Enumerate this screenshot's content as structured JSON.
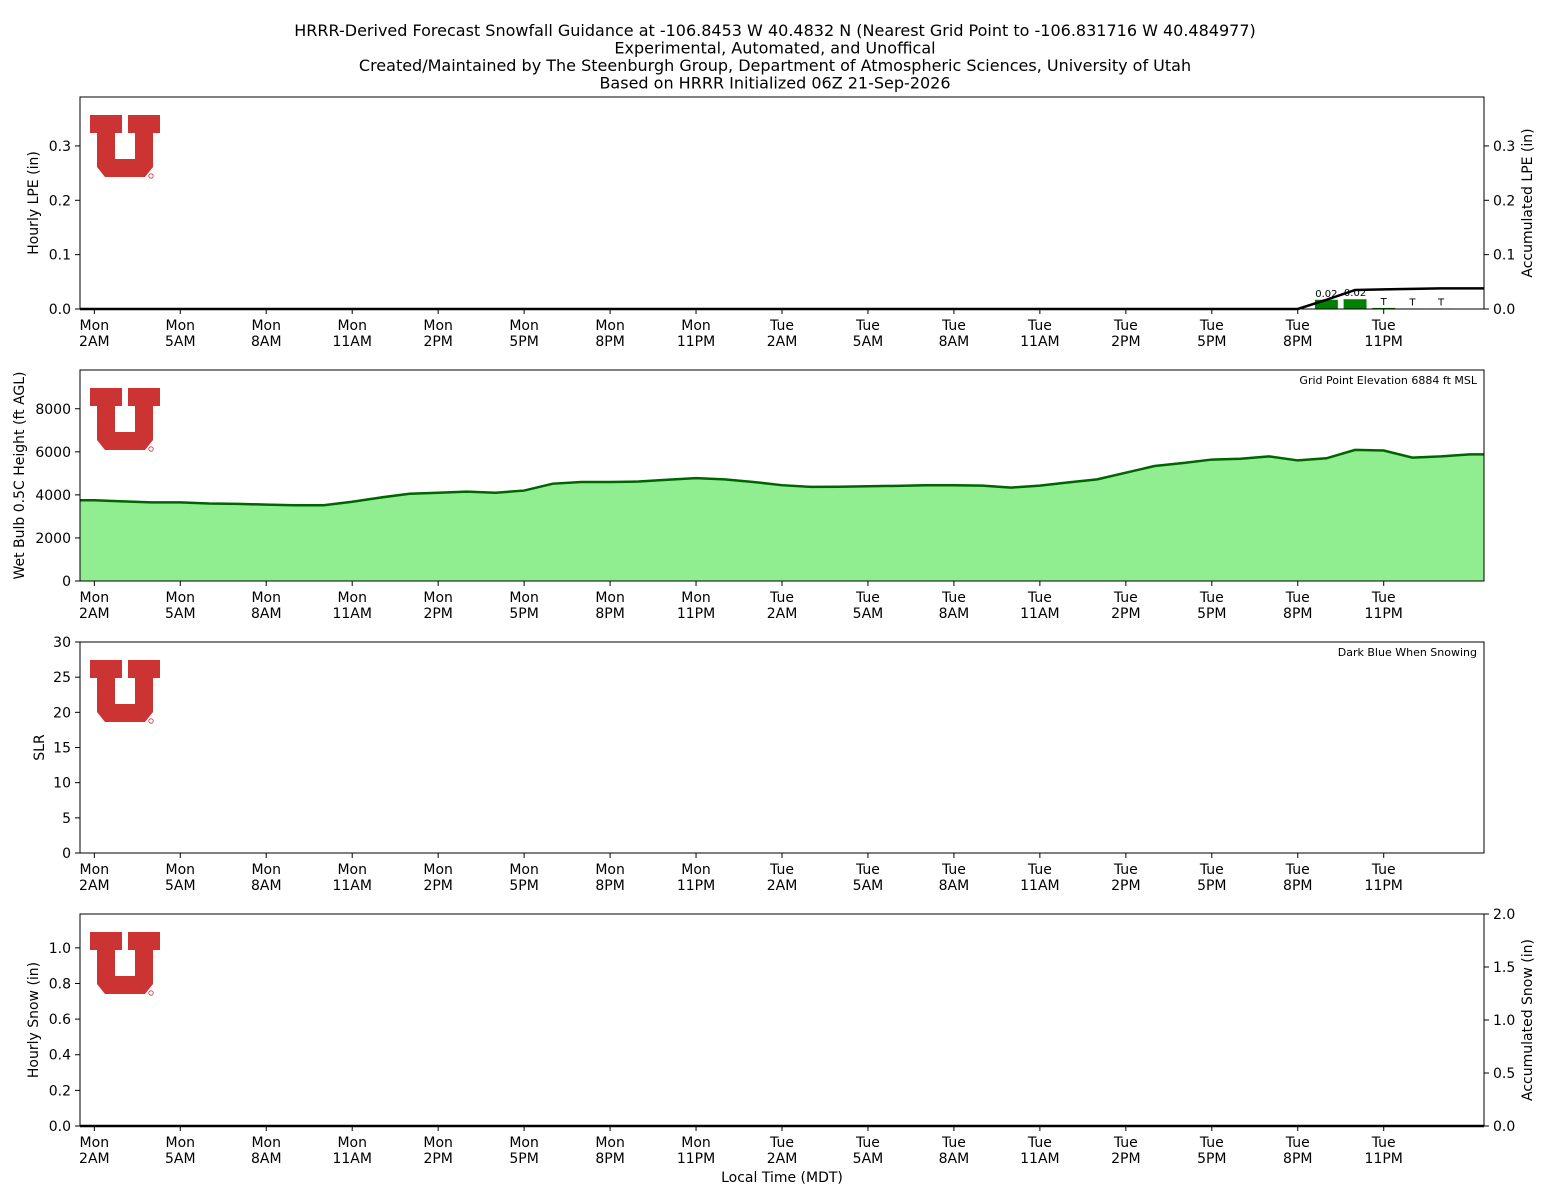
{
  "chart_data": {
    "title_lines": [
      "HRRR-Derived Forecast Snowfall Guidance at -106.8453 W 40.4832 N (Nearest Grid Point to -106.831716 W 40.484977)",
      "Experimental, Automated, and Unoffical",
      "Created/Maintained by The Steenburgh Group, Department of Atmospheric Sciences, University of Utah",
      "Based on HRRR Initialized 06Z 21-Sep-2026"
    ],
    "xlabel": "Local Time (MDT)",
    "time_labels": [
      [
        "Mon",
        "2AM"
      ],
      [
        "Mon",
        "5AM"
      ],
      [
        "Mon",
        "8AM"
      ],
      [
        "Mon",
        "11AM"
      ],
      [
        "Mon",
        "2PM"
      ],
      [
        "Mon",
        "5PM"
      ],
      [
        "Mon",
        "8PM"
      ],
      [
        "Mon",
        "11PM"
      ],
      [
        "Tue",
        "2AM"
      ],
      [
        "Tue",
        "5AM"
      ],
      [
        "Tue",
        "8AM"
      ],
      [
        "Tue",
        "11AM"
      ],
      [
        "Tue",
        "2PM"
      ],
      [
        "Tue",
        "5PM"
      ],
      [
        "Tue",
        "8PM"
      ],
      [
        "Tue",
        "11PM"
      ]
    ],
    "hours_from_mon_midnight": [
      1,
      2,
      3,
      4,
      5,
      6,
      7,
      8,
      9,
      10,
      11,
      12,
      13,
      14,
      15,
      16,
      17,
      18,
      19,
      20,
      21,
      22,
      23,
      24,
      25,
      26,
      27,
      28,
      29,
      30,
      31,
      32,
      33,
      34,
      35,
      36,
      37,
      38,
      39,
      40,
      41,
      42,
      43,
      44,
      45,
      46,
      47,
      48,
      49
    ],
    "logo_color": "#cc3333",
    "panels": [
      {
        "id": "lpe",
        "type": "bar+line",
        "ylabel": "Hourly LPE (in)",
        "ylabel_right": "Accumulated LPE (in)",
        "ylim": [
          0,
          0.39
        ],
        "yticks": [
          0.0,
          0.1,
          0.2,
          0.3
        ],
        "ytick_labels": [
          "0.0",
          "0.1",
          "0.2",
          "0.3"
        ],
        "yticks_right": [
          0.0,
          0.1,
          0.2,
          0.3
        ],
        "ytick_labels_right": [
          "0.0",
          "0.1",
          "0.2",
          "0.3"
        ],
        "bar_color": "#008000",
        "bars": [
          {
            "hour": 44,
            "value": 0.017,
            "label": "0.02"
          },
          {
            "hour": 45,
            "value": 0.018,
            "label": "0.02"
          },
          {
            "hour": 46,
            "value": 0.002,
            "label": "T"
          },
          {
            "hour": 47,
            "value": 0.001,
            "label": "T"
          },
          {
            "hour": 48,
            "value": 0.001,
            "label": "T"
          }
        ],
        "accum_color": "#000000",
        "accumulated": [
          [
            1,
            0
          ],
          [
            43,
            0
          ],
          [
            44,
            0.017
          ],
          [
            45,
            0.035
          ],
          [
            46,
            0.036
          ],
          [
            47,
            0.037
          ],
          [
            48,
            0.038
          ],
          [
            49,
            0.038
          ]
        ]
      },
      {
        "id": "wetbulb",
        "type": "area",
        "ylabel": "Wet Bulb 0.5C Height (ft AGL)",
        "ylim": [
          0,
          9800
        ],
        "yticks": [
          0,
          2000,
          4000,
          6000,
          8000
        ],
        "ytick_labels": [
          "0",
          "2000",
          "4000",
          "6000",
          "8000"
        ],
        "note": "Grid Point Elevation 6884 ft MSL",
        "fill_color": "#90ee90",
        "line_color": "#006400",
        "values": [
          3750,
          3700,
          3650,
          3650,
          3600,
          3580,
          3550,
          3520,
          3520,
          3680,
          3880,
          4050,
          4100,
          4150,
          4100,
          4200,
          4520,
          4600,
          4600,
          4620,
          4700,
          4780,
          4720,
          4600,
          4450,
          4370,
          4380,
          4400,
          4420,
          4450,
          4450,
          4430,
          4340,
          4430,
          4580,
          4720,
          5030,
          5340,
          5480,
          5640,
          5680,
          5790,
          5600,
          5700,
          6090,
          6060,
          5730,
          5790,
          5880
        ]
      },
      {
        "id": "slr",
        "type": "line",
        "ylabel": "SLR",
        "ylim": [
          0,
          30
        ],
        "yticks": [
          0,
          5,
          10,
          15,
          20,
          25,
          30
        ],
        "ytick_labels": [
          "0",
          "5",
          "10",
          "15",
          "20",
          "25",
          "30"
        ],
        "note": "Dark Blue When Snowing",
        "values": []
      },
      {
        "id": "snow",
        "type": "bar+line",
        "ylabel": "Hourly Snow (in)",
        "ylabel_right": "Accumulated Snow (in)",
        "ylim": [
          0,
          1.19
        ],
        "yticks": [
          0.0,
          0.2,
          0.4,
          0.6,
          0.8,
          1.0
        ],
        "ytick_labels": [
          "0.0",
          "0.2",
          "0.4",
          "0.6",
          "0.8",
          "1.0"
        ],
        "ylim_right": [
          0,
          2.0
        ],
        "yticks_right": [
          0.0,
          0.5,
          1.0,
          1.5,
          2.0
        ],
        "ytick_labels_right": [
          "0.0",
          "0.5",
          "1.0",
          "1.5",
          "2.0"
        ],
        "accum_color": "#000000",
        "accumulated": [
          [
            1,
            0
          ],
          [
            49,
            0
          ]
        ]
      }
    ]
  }
}
